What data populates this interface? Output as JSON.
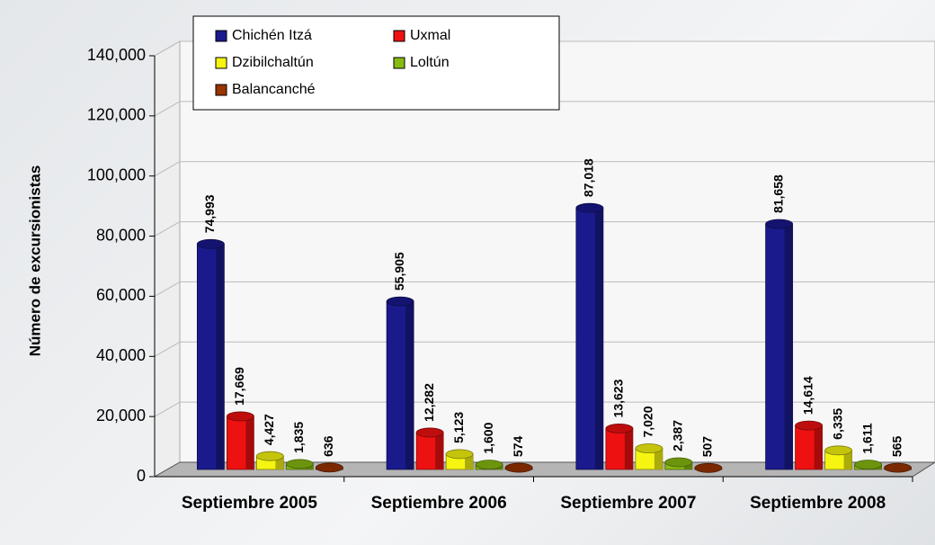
{
  "chart_data": {
    "type": "bar",
    "y_label": "Número de excursionistas",
    "categories": [
      "Septiembre 2005",
      "Septiembre 2006",
      "Septiembre 2007",
      "Septiembre 2008"
    ],
    "series": [
      {
        "name": "Chichén Itzá",
        "color": "#1a1a8c",
        "values": [
          74993,
          55905,
          87018,
          81658
        ],
        "value_labels": [
          "74,993",
          "55,905",
          "87,018",
          "81,658"
        ]
      },
      {
        "name": "Uxmal",
        "color": "#ee1111",
        "values": [
          17669,
          12282,
          13623,
          14614
        ],
        "value_labels": [
          "17,669",
          "12,282",
          "13,623",
          "14,614"
        ]
      },
      {
        "name": "Dzibilchaltún",
        "color": "#f5f511",
        "values": [
          4427,
          5123,
          7020,
          6335
        ],
        "value_labels": [
          "4,427",
          "5,123",
          "7,020",
          "6,335"
        ]
      },
      {
        "name": "Loltún",
        "color": "#88bb11",
        "values": [
          1835,
          1600,
          2387,
          1611
        ],
        "value_labels": [
          "1,835",
          "1,600",
          "2,387",
          "1,611"
        ]
      },
      {
        "name": "Balancanché",
        "color": "#993300",
        "values": [
          636,
          574,
          507,
          565
        ]
      }
    ],
    "ylim": [
      0,
      140000
    ],
    "yticks": [
      0,
      {
        "value": 20000,
        "label": "20,000"
      },
      {
        "value": 40000,
        "label": "40,000"
      },
      {
        "value": 60000,
        "label": "60,000"
      },
      {
        "value": 80000,
        "label": "80,000"
      },
      {
        "value": 100000,
        "label": "100,000"
      },
      {
        "value": 120000,
        "label": "120,000"
      },
      {
        "value": 140000,
        "label": "140,000"
      }
    ],
    "grid": true,
    "legend": "top-left"
  }
}
